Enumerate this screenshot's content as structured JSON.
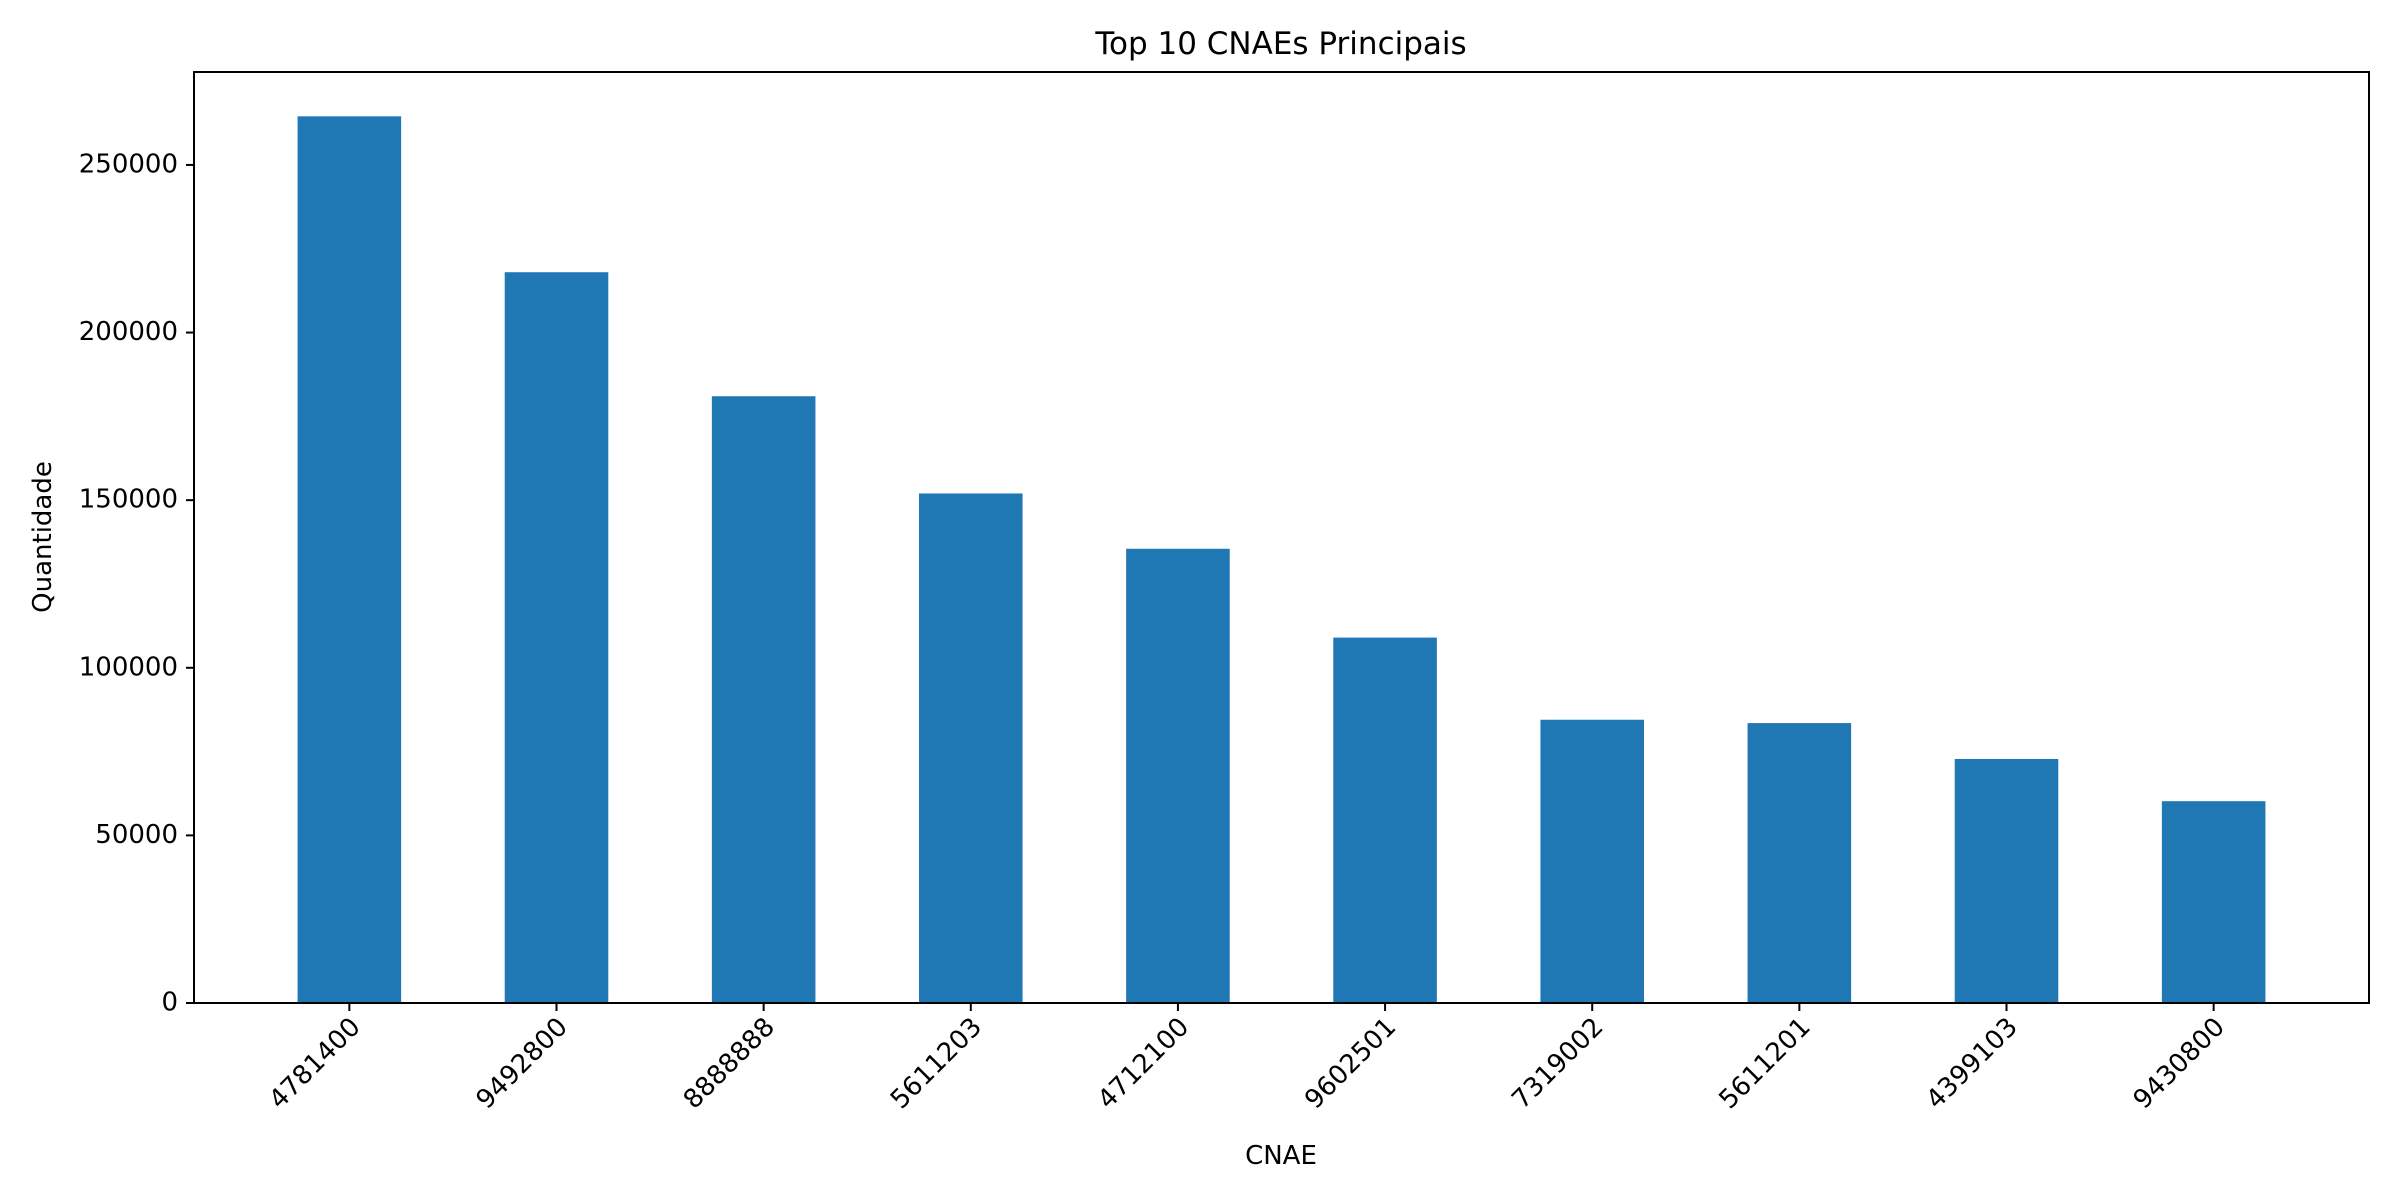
{
  "chart_data": {
    "type": "bar",
    "title": "Top 10 CNAEs Principais",
    "xlabel": "CNAE",
    "ylabel": "Quantidade",
    "categories": [
      "4781400",
      "9492800",
      "8888888",
      "5611203",
      "4712100",
      "9602501",
      "7319002",
      "5611201",
      "4399103",
      "9430800"
    ],
    "values": [
      264500,
      218000,
      181000,
      152000,
      135500,
      109000,
      84500,
      83500,
      72800,
      60200
    ],
    "ylim": [
      0,
      277725
    ],
    "yticks": [
      0,
      50000,
      100000,
      150000,
      200000,
      250000
    ],
    "grid": false,
    "legend": "none",
    "bar_color": "#1f77b4",
    "xtick_rotation": "45 degrees"
  }
}
